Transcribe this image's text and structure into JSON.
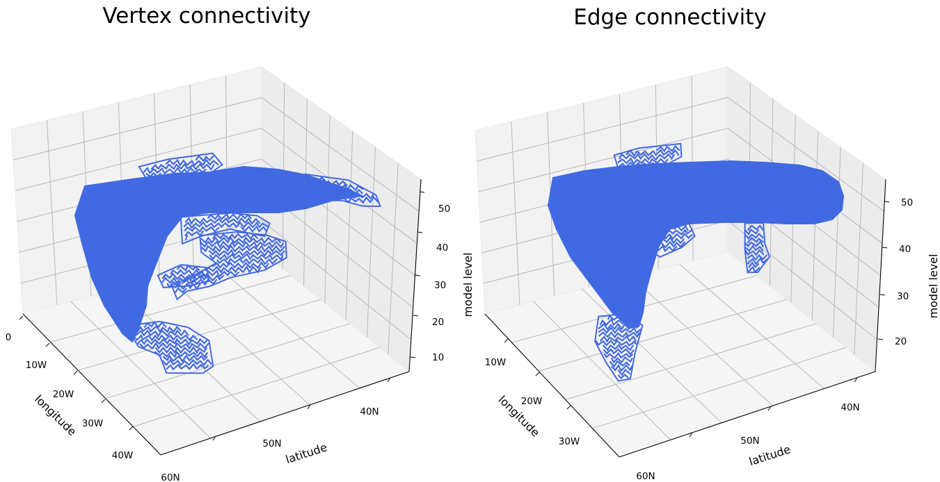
{
  "chart_data": [
    {
      "type": "3d-wireframe",
      "title": "Vertex connectivity",
      "xlabel": "longitude",
      "ylabel": "latitude",
      "zlabel": "",
      "x_ticks": [
        "0",
        "10W",
        "20W",
        "30W",
        "40W"
      ],
      "y_ticks": [
        "40N",
        "50N",
        "60N"
      ],
      "z_ticks": [
        "10",
        "20",
        "30",
        "40",
        "50"
      ],
      "z_range": [
        5,
        55
      ],
      "series_color": "#4169e1",
      "grid": true
    },
    {
      "type": "3d-wireframe",
      "title": "Edge connectivity",
      "xlabel": "longitude",
      "ylabel": "latitude",
      "zlabel": "model level",
      "left_zlabel": "model level",
      "x_ticks": [
        "10W",
        "20W",
        "30W"
      ],
      "y_ticks": [
        "40N",
        "50N",
        "60N"
      ],
      "z_ticks": [
        "20",
        "30",
        "40",
        "50"
      ],
      "z_range": [
        14,
        54
      ],
      "series_color": "#4169e1",
      "grid": true
    }
  ]
}
